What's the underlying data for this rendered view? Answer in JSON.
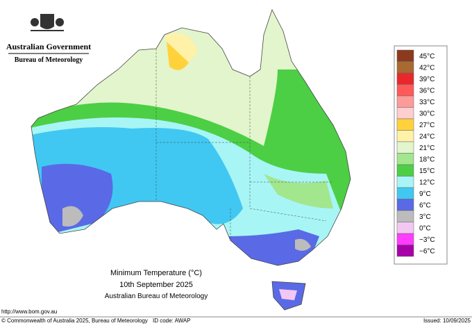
{
  "header": {
    "government": "Australian Government",
    "bureau": "Bureau of Meteorology"
  },
  "title": {
    "line1": "Minimum Temperature (°C)",
    "line2": "10th September 2025",
    "line3": "Australian Bureau of Meteorology"
  },
  "legend": {
    "items": [
      {
        "label": "45°C",
        "color": "#8b3a1e"
      },
      {
        "label": "42°C",
        "color": "#a86a32"
      },
      {
        "label": "39°C",
        "color": "#e8282a"
      },
      {
        "label": "36°C",
        "color": "#ff5a5a"
      },
      {
        "label": "33°C",
        "color": "#ff9a9a"
      },
      {
        "label": "30°C",
        "color": "#ffcece"
      },
      {
        "label": "27°C",
        "color": "#ffd23c"
      },
      {
        "label": "24°C",
        "color": "#fff2a8"
      },
      {
        "label": "21°C",
        "color": "#e2f5cc"
      },
      {
        "label": "18°C",
        "color": "#a2e68e"
      },
      {
        "label": "15°C",
        "color": "#4ccf45"
      },
      {
        "label": "12°C",
        "color": "#a8f5f5"
      },
      {
        "label": "9°C",
        "color": "#40c8f2"
      },
      {
        "label": "6°C",
        "color": "#5a6ae6"
      },
      {
        "label": "3°C",
        "color": "#bcbcbc"
      },
      {
        "label": "0°C",
        "color": "#f2c8f2"
      },
      {
        "label": "−3°C",
        "color": "#ff3cff"
      },
      {
        "label": "−6°C",
        "color": "#a800a8"
      }
    ]
  },
  "footer": {
    "url": "http://www.bom.gov.au",
    "copyright": "© Commonwealth of Australia 2025, Bureau of Meteorology",
    "id": "ID code: AWAP",
    "issued": "Issued: 10/09/2025"
  }
}
